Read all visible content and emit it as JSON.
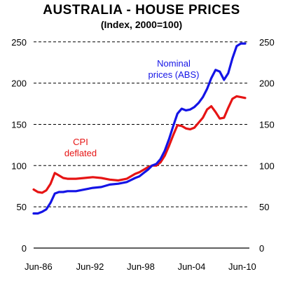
{
  "chart_data": {
    "type": "line",
    "title": "AUSTRALIA - HOUSE PRICES",
    "subtitle": "(Index, 2000=100)",
    "x_tick_labels": [
      "Jun-86",
      "Jun-92",
      "Jun-98",
      "Jun-04",
      "Jun-10"
    ],
    "y_ticks": [
      0,
      50,
      100,
      150,
      200,
      250
    ],
    "ylim": [
      0,
      260
    ],
    "xlim": [
      1986.0,
      2011.5
    ],
    "grid": "horizontal-dashed",
    "colors": {
      "nominal": "#1414e6",
      "deflated": "#e61414"
    },
    "annotations": [
      {
        "series": "Nominal prices (ABS)",
        "lines": [
          "Nominal",
          "prices (ABS)"
        ]
      },
      {
        "series": "CPI deflated",
        "lines": [
          "CPI",
          "deflated"
        ]
      }
    ],
    "series": [
      {
        "name": "Nominal prices (ABS)",
        "x": [
          1986.0,
          1986.5,
          1987.0,
          1987.5,
          1988.0,
          1988.5,
          1989.0,
          1989.5,
          1990.0,
          1991.0,
          1992.0,
          1993.0,
          1994.0,
          1995.0,
          1996.0,
          1997.0,
          1998.0,
          1998.5,
          1999.0,
          1999.5,
          2000.0,
          2000.5,
          2001.0,
          2001.5,
          2002.0,
          2002.5,
          2003.0,
          2003.5,
          2004.0,
          2004.5,
          2005.0,
          2005.5,
          2006.0,
          2006.5,
          2007.0,
          2007.5,
          2008.0,
          2008.5,
          2009.0,
          2009.5,
          2010.0,
          2010.5,
          2011.0
        ],
        "values": [
          42,
          42,
          44,
          47,
          55,
          66,
          68,
          68,
          69,
          69,
          71,
          73,
          74,
          77,
          78,
          80,
          85,
          87,
          91,
          95,
          100,
          102,
          108,
          118,
          132,
          148,
          163,
          169,
          167,
          168,
          171,
          176,
          183,
          193,
          206,
          216,
          214,
          204,
          212,
          230,
          245,
          248,
          248
        ]
      },
      {
        "name": "CPI deflated",
        "x": [
          1986.0,
          1986.5,
          1987.0,
          1987.5,
          1988.0,
          1988.5,
          1989.0,
          1989.5,
          1990.0,
          1991.0,
          1992.0,
          1993.0,
          1994.0,
          1995.0,
          1996.0,
          1997.0,
          1998.0,
          1998.5,
          1999.0,
          1999.5,
          2000.0,
          2000.5,
          2001.0,
          2001.5,
          2002.0,
          2002.5,
          2003.0,
          2003.5,
          2004.0,
          2004.5,
          2005.0,
          2005.5,
          2006.0,
          2006.5,
          2007.0,
          2007.5,
          2008.0,
          2008.5,
          2009.0,
          2009.5,
          2010.0,
          2010.5,
          2011.0
        ],
        "values": [
          71,
          68,
          67,
          70,
          78,
          91,
          88,
          85,
          84,
          84,
          85,
          86,
          85,
          83,
          82,
          84,
          90,
          92,
          95,
          98,
          100,
          100,
          104,
          112,
          124,
          137,
          149,
          148,
          145,
          144,
          146,
          152,
          158,
          168,
          172,
          165,
          157,
          158,
          170,
          181,
          184,
          183,
          182
        ]
      }
    ]
  }
}
